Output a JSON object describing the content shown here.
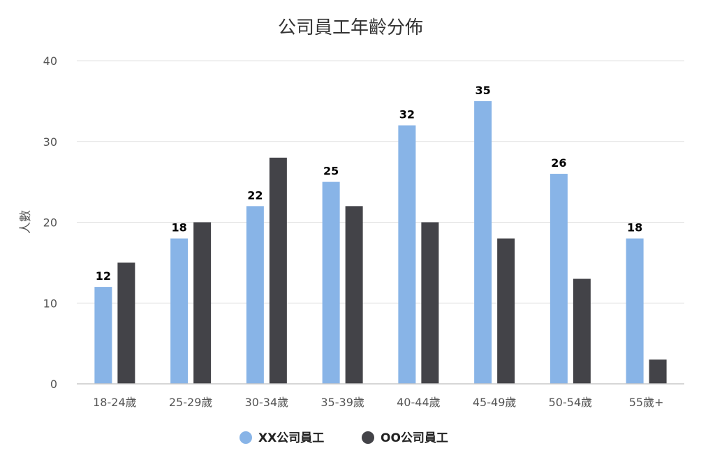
{
  "chart_data": {
    "type": "bar",
    "title": "公司員工年齡分佈",
    "xlabel": "",
    "ylabel": "人數",
    "categories": [
      "18-24歲",
      "25-29歲",
      "30-34歲",
      "35-39歲",
      "40-44歲",
      "45-49歲",
      "50-54歲",
      "55歲+"
    ],
    "series": [
      {
        "name": "XX公司員工",
        "color": "#88b4e7",
        "values": [
          12,
          18,
          22,
          25,
          32,
          35,
          26,
          18
        ],
        "data_labels": true
      },
      {
        "name": "OO公司員工",
        "color": "#434348",
        "values": [
          15,
          20,
          28,
          22,
          20,
          18,
          13,
          3
        ],
        "data_labels": false
      }
    ],
    "ylim": [
      0,
      40
    ],
    "yticks": [
      0,
      10,
      20,
      30,
      40
    ],
    "grid": true,
    "legend": "bottom-center"
  }
}
